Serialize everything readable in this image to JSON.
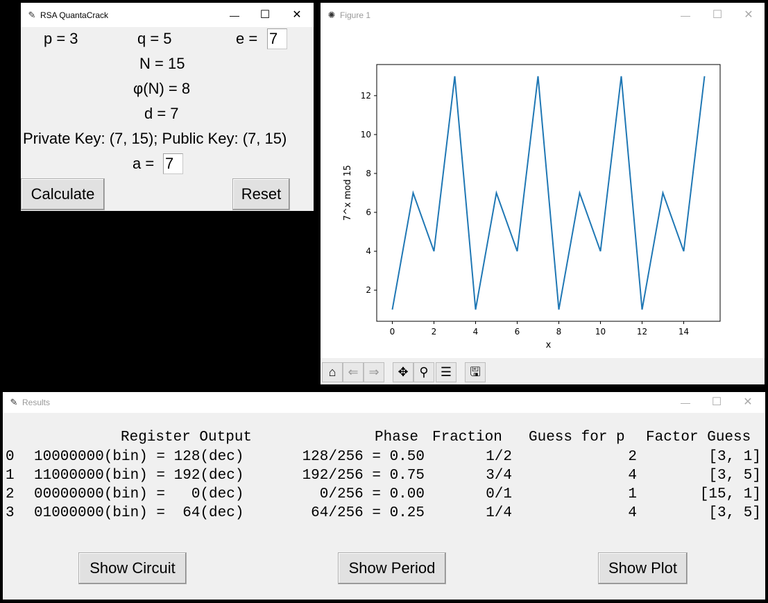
{
  "rsa_window": {
    "title": "RSA QuantaCrack",
    "p_label": "p = 3",
    "q_label": "q = 5",
    "e_label": "e =",
    "e_value": "7",
    "n_label": "N = 15",
    "phi_label": "φ(N) = 8",
    "d_label": "d = 7",
    "keys_label": "Private Key: (7, 15); Public Key: (7, 15)",
    "a_label": "a =",
    "a_value": "7",
    "calculate_label": "Calculate",
    "reset_label": "Reset"
  },
  "figure_window": {
    "title": "Figure 1",
    "toolbar_icons": [
      "home-icon",
      "back-icon",
      "forward-icon",
      "pan-icon",
      "zoom-icon",
      "configure-icon",
      "save-icon"
    ]
  },
  "chart_data": {
    "type": "line",
    "title": "",
    "xlabel": "x",
    "ylabel": "7^x mod 15",
    "x": [
      0,
      1,
      2,
      3,
      4,
      5,
      6,
      7,
      8,
      9,
      10,
      11,
      12,
      13,
      14,
      15
    ],
    "series": [
      {
        "values": [
          1,
          7,
          4,
          13,
          1,
          7,
          4,
          13,
          1,
          7,
          4,
          13,
          1,
          7,
          4,
          13
        ],
        "color": "#1f77b4"
      }
    ],
    "xticks": [
      0,
      2,
      4,
      6,
      8,
      10,
      12,
      14
    ],
    "xtick_labels": [
      "0",
      "2",
      "4",
      "6",
      "8",
      "10",
      "12",
      "14"
    ],
    "yticks": [
      2,
      4,
      6,
      8,
      10,
      12
    ],
    "ytick_labels": [
      "2",
      "4",
      "6",
      "8",
      "10",
      "12"
    ],
    "xlim": [
      -0.75,
      15.75
    ],
    "ylim": [
      0.4,
      13.6
    ],
    "grid": false
  },
  "results_window": {
    "title": "Results",
    "columns": [
      "Register Output",
      "Phase",
      "Fraction",
      "Guess for p",
      "Factor Guess"
    ],
    "rows": [
      {
        "index": "0",
        "register": "10000000(bin) = 128(dec)",
        "phase": "128/256 = 0.50",
        "fraction": "1/2",
        "guess": "2",
        "factor": "[3, 1]"
      },
      {
        "index": "1",
        "register": "11000000(bin) = 192(dec)",
        "phase": "192/256 = 0.75",
        "fraction": "3/4",
        "guess": "4",
        "factor": "[3, 5]"
      },
      {
        "index": "2",
        "register": "00000000(bin) =   0(dec)",
        "phase": "0/256 = 0.00",
        "fraction": "0/1",
        "guess": "1",
        "factor": "[15, 1]"
      },
      {
        "index": "3",
        "register": "01000000(bin) =  64(dec)",
        "phase": "64/256 = 0.25",
        "fraction": "1/4",
        "guess": "4",
        "factor": "[3, 5]"
      }
    ],
    "show_circuit_label": "Show Circuit",
    "show_period_label": "Show Period",
    "show_plot_label": "Show Plot"
  }
}
